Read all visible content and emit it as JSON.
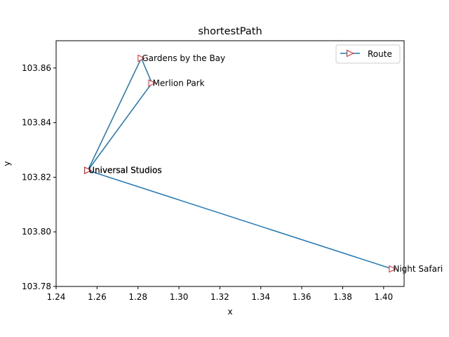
{
  "chart_data": {
    "type": "line",
    "title": "shortestPath",
    "xlabel": "x",
    "ylabel": "y",
    "xlim": [
      1.24,
      1.41
    ],
    "ylim": [
      103.78,
      103.87
    ],
    "x_ticks": [
      1.24,
      1.26,
      1.28,
      1.3,
      1.32,
      1.34,
      1.36,
      1.38,
      1.4
    ],
    "x_tick_labels": [
      "1.24",
      "1.26",
      "1.28",
      "1.30",
      "1.32",
      "1.34",
      "1.36",
      "1.38",
      "1.40"
    ],
    "y_ticks": [
      103.78,
      103.8,
      103.82,
      103.84,
      103.86
    ],
    "y_tick_labels": [
      "103.78",
      "103.80",
      "103.82",
      "103.84",
      "103.86"
    ],
    "grid": false,
    "legend_position": "top-right",
    "series": [
      {
        "name": "Route",
        "color": "#1f77b4",
        "marker": "triangle-right",
        "marker_color": "#d62728",
        "points": [
          {
            "x": 1.2555,
            "y": 103.8225,
            "label": "Universal Studios"
          },
          {
            "x": 1.2816,
            "y": 103.8636,
            "label": "Gardens by the Bay"
          },
          {
            "x": 1.2868,
            "y": 103.8545,
            "label": "Merlion Park"
          },
          {
            "x": 1.2555,
            "y": 103.8225,
            "label": "Universal Studios"
          },
          {
            "x": 1.4043,
            "y": 103.7864,
            "label": "Night Safari"
          },
          {
            "x": 1.2555,
            "y": 103.8225,
            "label": "Universal Studios"
          }
        ]
      }
    ]
  }
}
